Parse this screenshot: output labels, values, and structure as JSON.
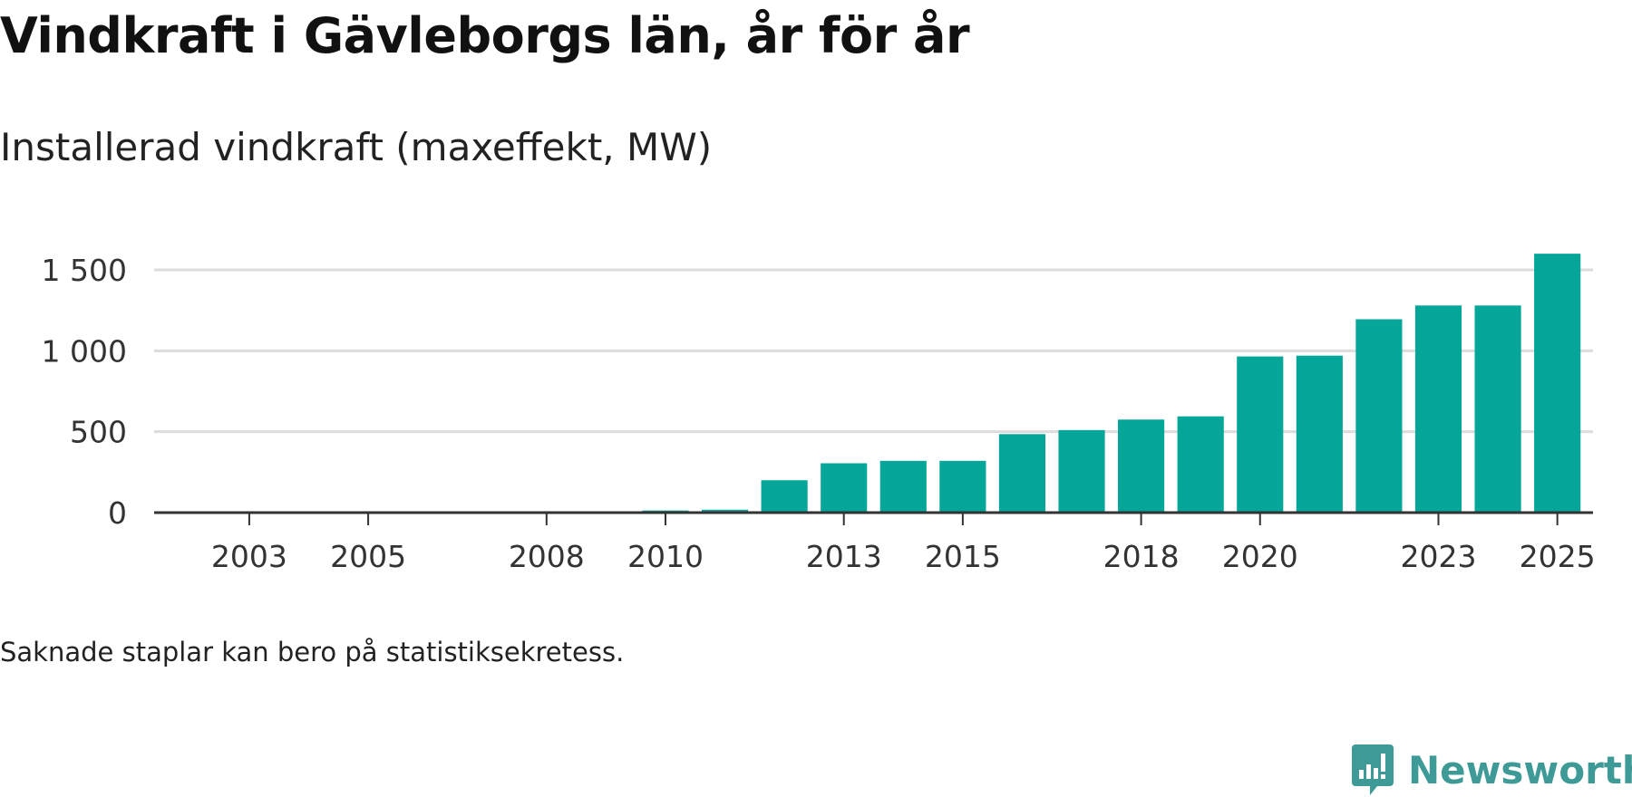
{
  "chart_data": {
    "type": "bar",
    "title": "Vindkraft i Gävleborgs län, år för år",
    "subtitle": "Installerad vindkraft (maxeffekt, MW)",
    "xlabel": "",
    "ylabel": "",
    "categories": [
      "2002",
      "2003",
      "2004",
      "2005",
      "2006",
      "2007",
      "2008",
      "2009",
      "2010",
      "2011",
      "2012",
      "2013",
      "2014",
      "2015",
      "2016",
      "2017",
      "2018",
      "2019",
      "2020",
      "2021",
      "2022",
      "2023",
      "2024",
      "2025"
    ],
    "values": [
      null,
      null,
      null,
      null,
      null,
      null,
      null,
      8,
      13,
      18,
      200,
      305,
      320,
      320,
      485,
      510,
      575,
      595,
      965,
      970,
      1195,
      1280,
      1280,
      1600
    ],
    "x_tick_labels": [
      "2003",
      "2005",
      "2008",
      "2010",
      "2013",
      "2015",
      "2018",
      "2020",
      "2023",
      "2025"
    ],
    "y_ticks": [
      0,
      500,
      1000,
      1500
    ],
    "y_tick_labels": [
      "0",
      "500",
      "1 000",
      "1 500"
    ],
    "ylim": [
      0,
      1600
    ],
    "grid": true,
    "bar_color": "#04a699",
    "footnote": "Saknade staplar kan bero på statistiksekretess."
  },
  "brand": {
    "name": "Newsworthy",
    "color": "#3d9a96",
    "icon": "newsworthy-logo-icon"
  }
}
